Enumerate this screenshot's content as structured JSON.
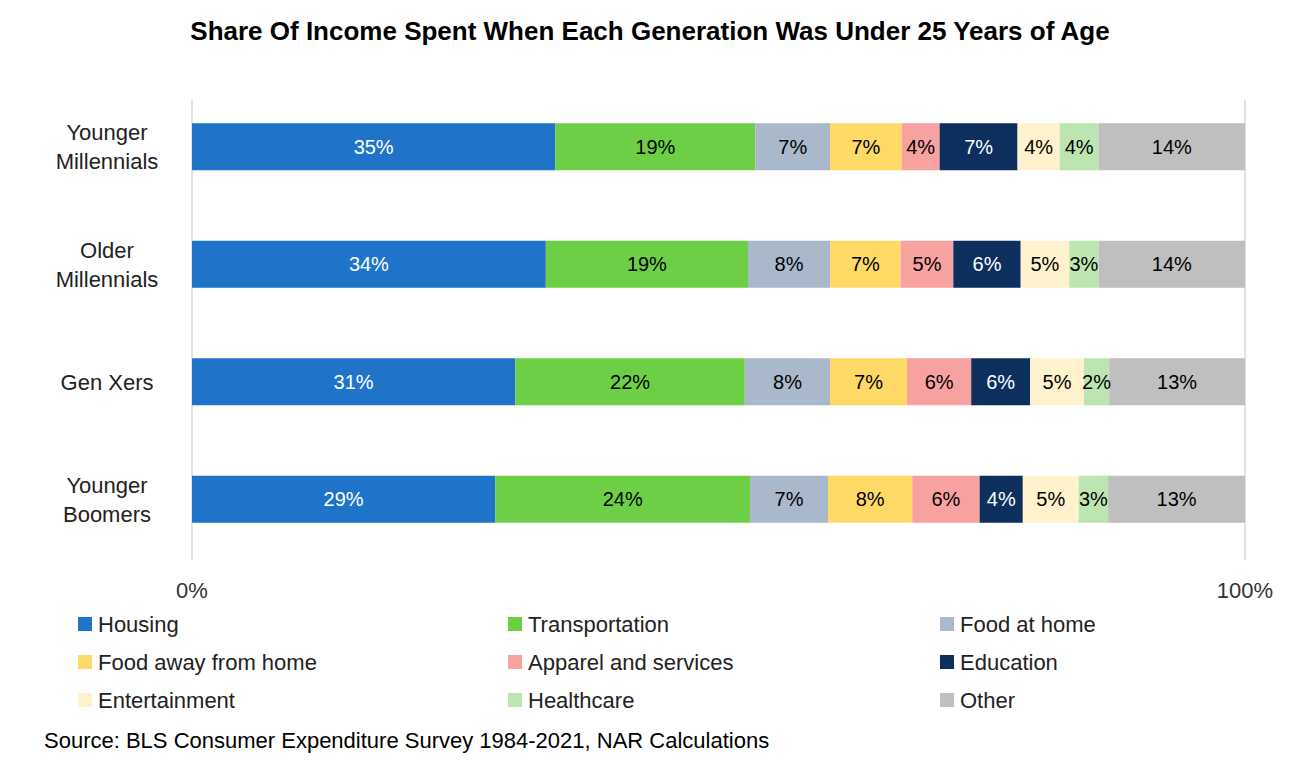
{
  "chart_data": {
    "type": "bar",
    "title": "Share Of Income Spent When Each Generation Was Under 25 Years of Age",
    "source": "Source: BLS Consumer Expenditure Survey 1984-2021, NAR Calculations",
    "orientation": "horizontal",
    "stacked": true,
    "data_labels": true,
    "grid": false,
    "legend": "bottom",
    "categories": [
      "Younger Millennials",
      "Older Millennials",
      "Gen Xers",
      "Younger Boomers"
    ],
    "xlim": [
      0,
      100
    ],
    "xticks": [
      {
        "value": 0,
        "label": "0%"
      },
      {
        "value": 100,
        "label": "100%"
      }
    ],
    "series": [
      {
        "name": "Housing",
        "color": "#1f73c9",
        "values": [
          34.5,
          33.6,
          30.7,
          28.8
        ],
        "value_labels": [
          "35%",
          "34%",
          "31%",
          "29%"
        ]
      },
      {
        "name": "Transportation",
        "color": "#6dcf45",
        "values": [
          19.0,
          19.2,
          21.8,
          24.2
        ],
        "value_labels": [
          "19%",
          "19%",
          "22%",
          "24%"
        ]
      },
      {
        "name": "Food at home",
        "color": "#a9b8cb",
        "values": [
          7.1,
          7.8,
          8.1,
          7.4
        ],
        "value_labels": [
          "7%",
          "8%",
          "8%",
          "7%"
        ]
      },
      {
        "name": "Food away from home",
        "color": "#ffd966",
        "values": [
          6.8,
          6.7,
          7.3,
          8.0
        ],
        "value_labels": [
          "7%",
          "7%",
          "7%",
          "8%"
        ]
      },
      {
        "name": "Apparel and services",
        "color": "#f7a1a1",
        "values": [
          3.6,
          5.0,
          6.1,
          6.4
        ],
        "value_labels": [
          "4%",
          "5%",
          "6%",
          "6%"
        ]
      },
      {
        "name": "Education",
        "color": "#0c2f5e",
        "values": [
          7.4,
          6.4,
          5.6,
          4.1
        ],
        "value_labels": [
          "7%",
          "6%",
          "6%",
          "4%"
        ]
      },
      {
        "name": "Entertainment",
        "color": "#fff2cc",
        "values": [
          4.0,
          4.6,
          5.1,
          5.3
        ],
        "value_labels": [
          "4%",
          "5%",
          "5%",
          "5%"
        ]
      },
      {
        "name": "Healthcare",
        "color": "#bde5b2",
        "values": [
          3.7,
          2.8,
          2.4,
          2.8
        ],
        "value_labels": [
          "4%",
          "3%",
          "2%",
          "3%"
        ]
      },
      {
        "name": "Other",
        "color": "#bfbfbf",
        "values": [
          13.9,
          13.9,
          12.9,
          13.0
        ],
        "value_labels": [
          "14%",
          "14%",
          "13%",
          "13%"
        ]
      }
    ]
  }
}
